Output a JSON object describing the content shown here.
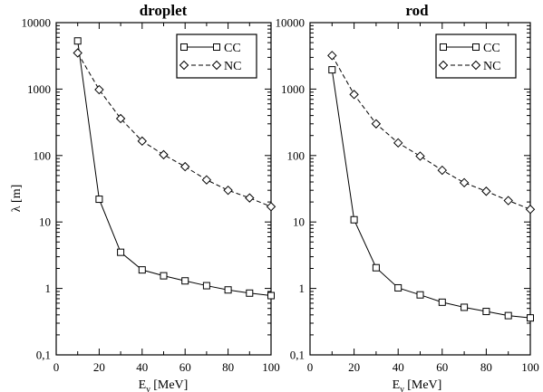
{
  "chart_data": [
    {
      "type": "line",
      "title": "droplet",
      "xlabel": "E",
      "xlabel_sub": "ν",
      "xlabel_unit": " [MeV]",
      "ylabel": "λ [m]",
      "x_scale": "linear",
      "y_scale": "log",
      "xlim": [
        0,
        100
      ],
      "ylim": [
        0.1,
        10000
      ],
      "x_ticks": [
        0,
        20,
        40,
        60,
        80,
        100
      ],
      "x_tick_labels": [
        "0",
        "20",
        "40",
        "60",
        "80",
        "100"
      ],
      "y_ticks": [
        0.1,
        1,
        10,
        100,
        1000,
        10000
      ],
      "y_tick_labels": [
        "0,1",
        "1",
        "10",
        "100",
        "1000",
        "10000"
      ],
      "grid": false,
      "legend_position": "top-right",
      "series": [
        {
          "name": "CC",
          "marker": "square",
          "line_style": "solid",
          "x": [
            10,
            20,
            30,
            40,
            50,
            60,
            70,
            80,
            90,
            100
          ],
          "y": [
            5300,
            22,
            3.5,
            1.9,
            1.55,
            1.3,
            1.1,
            0.95,
            0.85,
            0.78
          ]
        },
        {
          "name": "NC",
          "marker": "diamond",
          "line_style": "dashed",
          "x": [
            10,
            20,
            30,
            40,
            50,
            60,
            70,
            80,
            90,
            100
          ],
          "y": [
            3500,
            980,
            360,
            165,
            103,
            68,
            43,
            30,
            23,
            17
          ]
        }
      ]
    },
    {
      "type": "line",
      "title": "rod",
      "xlabel": "E",
      "xlabel_sub": "ν",
      "xlabel_unit": " [MeV]",
      "ylabel": "",
      "x_scale": "linear",
      "y_scale": "log",
      "xlim": [
        0,
        100
      ],
      "ylim": [
        0.1,
        10000
      ],
      "x_ticks": [
        0,
        20,
        40,
        60,
        80,
        100
      ],
      "x_tick_labels": [
        "0",
        "20",
        "40",
        "60",
        "80",
        "100"
      ],
      "y_ticks": [
        0.1,
        1,
        10,
        100,
        1000,
        10000
      ],
      "y_tick_labels": [
        "0,1",
        "1",
        "10",
        "100",
        "1000",
        "10000"
      ],
      "grid": false,
      "legend_position": "top-right",
      "series": [
        {
          "name": "CC",
          "marker": "square",
          "line_style": "solid",
          "x": [
            10,
            20,
            30,
            40,
            50,
            60,
            70,
            80,
            90,
            100
          ],
          "y": [
            1950,
            10.8,
            2.05,
            1.02,
            0.8,
            0.62,
            0.52,
            0.45,
            0.39,
            0.36
          ]
        },
        {
          "name": "NC",
          "marker": "diamond",
          "line_style": "dashed",
          "x": [
            10,
            20,
            30,
            40,
            50,
            60,
            70,
            80,
            90,
            100
          ],
          "y": [
            3200,
            830,
            300,
            155,
            98,
            60,
            39,
            29,
            21,
            15.5
          ]
        }
      ]
    }
  ]
}
